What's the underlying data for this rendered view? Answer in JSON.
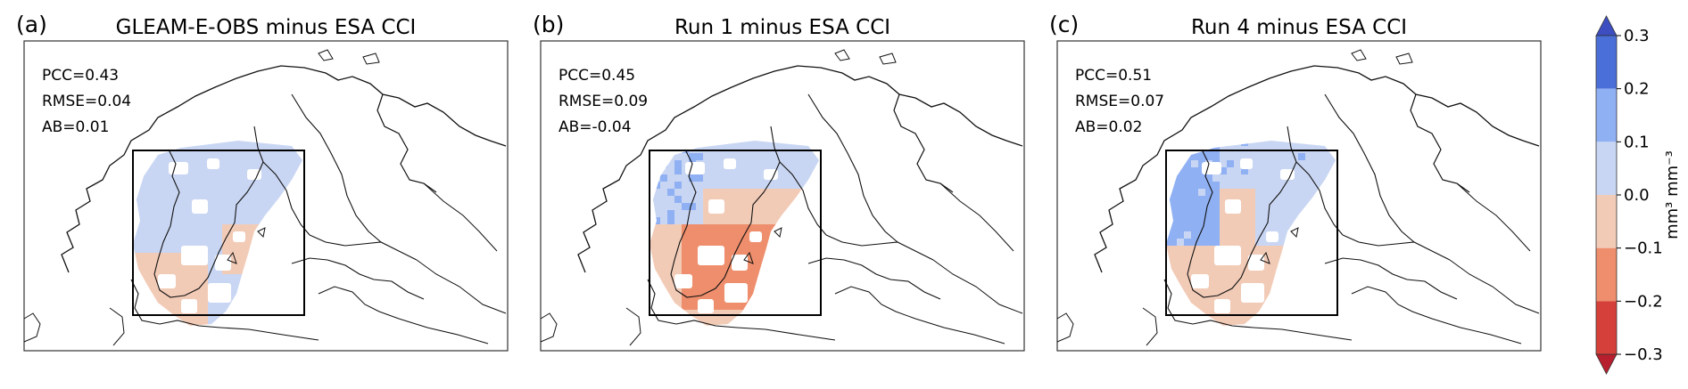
{
  "panels": [
    {
      "letter": "(a)",
      "title": "GLEAM-E-OBS minus ESA CCI",
      "stats": [
        "PCC=0.43",
        "RMSE=0.04",
        "AB=0.01"
      ],
      "pattern": "mixed"
    },
    {
      "letter": "(b)",
      "title": "Run 1 minus ESA CCI",
      "stats": [
        "PCC=0.45",
        "RMSE=0.09",
        "AB=-0.04"
      ],
      "pattern": "dry"
    },
    {
      "letter": "(c)",
      "title": "Run 4 minus ESA CCI",
      "stats": [
        "PCC=0.51",
        "RMSE=0.07",
        "AB=0.02"
      ],
      "pattern": "wet"
    }
  ],
  "colorbar": {
    "unit_label": "mm³ mm⁻³",
    "ticks": [
      "0.3",
      "0.2",
      "0.1",
      "0.0",
      "−0.1",
      "−0.2",
      "−0.3"
    ],
    "bins": [
      {
        "from": 0.2,
        "to": 0.3,
        "color": "#4a6fd8"
      },
      {
        "from": 0.1,
        "to": 0.2,
        "color": "#8fb0f3"
      },
      {
        "from": 0.0,
        "to": 0.1,
        "color": "#c9d6f3"
      },
      {
        "from": -0.1,
        "to": 0.0,
        "color": "#f2cbb7"
      },
      {
        "from": -0.2,
        "to": -0.1,
        "color": "#ee8e6c"
      },
      {
        "from": -0.3,
        "to": -0.2,
        "color": "#d6403a"
      }
    ],
    "extend_top_color": "#3d4fc0",
    "extend_bottom_color": "#b81f2e"
  }
}
